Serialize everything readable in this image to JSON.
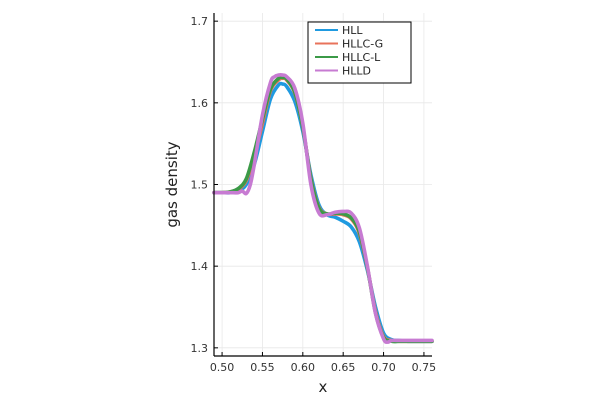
{
  "chart_data": {
    "type": "line",
    "xlabel": "x",
    "ylabel": "gas density",
    "xlim": [
      0.49,
      0.76
    ],
    "ylim": [
      1.29,
      1.71
    ],
    "xticks": [
      0.5,
      0.55,
      0.6,
      0.65,
      0.7,
      0.75
    ],
    "xtick_labels": [
      "0.50",
      "0.55",
      "0.60",
      "0.65",
      "0.70",
      "0.75"
    ],
    "yticks": [
      1.3,
      1.4,
      1.5,
      1.6,
      1.7
    ],
    "ytick_labels": [
      "1.3",
      "1.4",
      "1.5",
      "1.6",
      "1.7"
    ],
    "grid": true,
    "legend_position": "top-right",
    "series": [
      {
        "name": "HLL",
        "color": "#1f9ae0",
        "x": [
          0.49,
          0.5,
          0.51,
          0.52,
          0.53,
          0.54,
          0.55,
          0.56,
          0.57,
          0.575,
          0.58,
          0.59,
          0.6,
          0.61,
          0.62,
          0.63,
          0.64,
          0.65,
          0.66,
          0.67,
          0.68,
          0.69,
          0.7,
          0.71,
          0.72,
          0.73,
          0.74,
          0.76
        ],
        "y": [
          1.49,
          1.49,
          1.49,
          1.492,
          1.5,
          1.525,
          1.565,
          1.605,
          1.622,
          1.623,
          1.62,
          1.602,
          1.565,
          1.512,
          1.475,
          1.463,
          1.46,
          1.455,
          1.448,
          1.43,
          1.395,
          1.35,
          1.318,
          1.31,
          1.309,
          1.308,
          1.308,
          1.308
        ]
      },
      {
        "name": "HLLC-G",
        "color": "#e8735b",
        "x": [
          0.49,
          0.5,
          0.51,
          0.52,
          0.53,
          0.54,
          0.55,
          0.56,
          0.57,
          0.575,
          0.58,
          0.59,
          0.6,
          0.61,
          0.62,
          0.63,
          0.64,
          0.65,
          0.66,
          0.67,
          0.68,
          0.69,
          0.7,
          0.71,
          0.72,
          0.73,
          0.74,
          0.76
        ],
        "y": [
          1.49,
          1.49,
          1.491,
          1.494,
          1.505,
          1.535,
          1.575,
          1.615,
          1.628,
          1.63,
          1.628,
          1.612,
          1.57,
          1.508,
          1.472,
          1.464,
          1.464,
          1.463,
          1.458,
          1.44,
          1.398,
          1.345,
          1.314,
          1.309,
          1.308,
          1.308,
          1.308,
          1.308
        ]
      },
      {
        "name": "HLLC-L",
        "color": "#3b9a47",
        "x": [
          0.49,
          0.5,
          0.51,
          0.52,
          0.53,
          0.54,
          0.55,
          0.56,
          0.57,
          0.575,
          0.58,
          0.59,
          0.6,
          0.61,
          0.62,
          0.63,
          0.64,
          0.65,
          0.66,
          0.67,
          0.68,
          0.69,
          0.7,
          0.71,
          0.72,
          0.73,
          0.74,
          0.76
        ],
        "y": [
          1.49,
          1.49,
          1.491,
          1.495,
          1.507,
          1.54,
          1.58,
          1.617,
          1.63,
          1.631,
          1.629,
          1.613,
          1.57,
          1.507,
          1.471,
          1.464,
          1.465,
          1.464,
          1.459,
          1.442,
          1.398,
          1.343,
          1.313,
          1.308,
          1.308,
          1.308,
          1.308,
          1.308
        ]
      },
      {
        "name": "HLLD",
        "color": "#c77bd2",
        "x": [
          0.49,
          0.5,
          0.51,
          0.52,
          0.525,
          0.53,
          0.535,
          0.54,
          0.55,
          0.56,
          0.565,
          0.57,
          0.575,
          0.58,
          0.59,
          0.6,
          0.61,
          0.62,
          0.63,
          0.64,
          0.65,
          0.66,
          0.67,
          0.68,
          0.69,
          0.7,
          0.705,
          0.71,
          0.72,
          0.73,
          0.74,
          0.76
        ],
        "y": [
          1.49,
          1.49,
          1.49,
          1.49,
          1.492,
          1.489,
          1.5,
          1.525,
          1.585,
          1.625,
          1.632,
          1.634,
          1.634,
          1.632,
          1.618,
          1.575,
          1.5,
          1.465,
          1.463,
          1.466,
          1.467,
          1.465,
          1.447,
          1.4,
          1.342,
          1.311,
          1.307,
          1.309,
          1.309,
          1.309,
          1.309,
          1.309
        ]
      }
    ]
  }
}
